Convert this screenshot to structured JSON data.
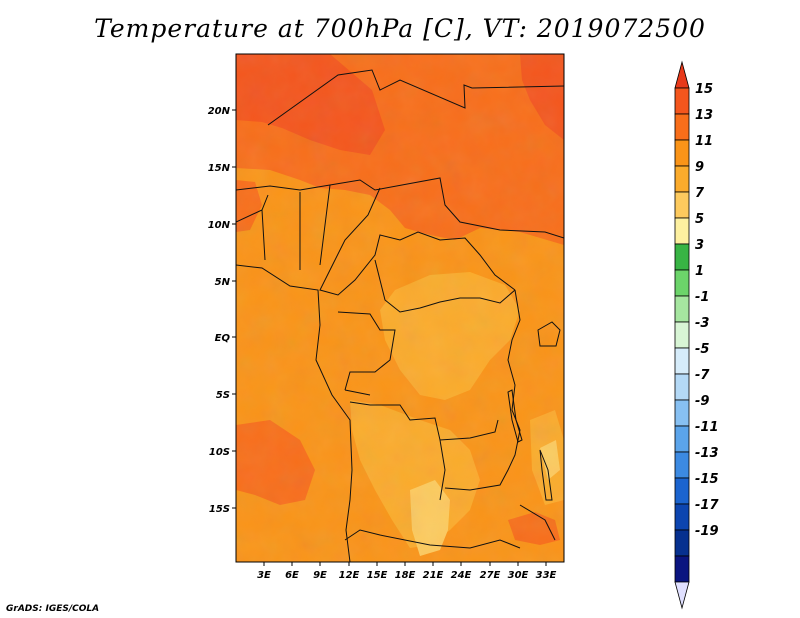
{
  "title": "Temperature at 700hPa [C], VT: 2019072500",
  "credit": "GrADS: IGES/COLA",
  "map": {
    "lat_ticks": [
      "20N",
      "15N",
      "10N",
      "5N",
      "EQ",
      "5S",
      "10S",
      "15S"
    ],
    "lon_ticks": [
      "3E",
      "6E",
      "9E",
      "12E",
      "15E",
      "18E",
      "21E",
      "24E",
      "27E",
      "30E",
      "33E"
    ]
  },
  "colorbar": {
    "labels": [
      "15",
      "13",
      "11",
      "9",
      "7",
      "5",
      "3",
      "1",
      "-1",
      "-3",
      "-5",
      "-7",
      "-9",
      "-11",
      "-13",
      "-15",
      "-17",
      "-19"
    ],
    "colors": [
      "#e8391a",
      "#f4561d",
      "#f86e1a",
      "#fa9418",
      "#fbab2c",
      "#fdca5e",
      "#fdf0a0",
      "#38b444",
      "#6cd46a",
      "#a6e6a0",
      "#d8f5d5",
      "#d6ecfa",
      "#b4d9f6",
      "#87c0f2",
      "#5ba4ea",
      "#3c8ae2",
      "#1b64cf",
      "#0c45b0",
      "#06308f",
      "#0a1580",
      "#e0e0ff"
    ]
  }
}
